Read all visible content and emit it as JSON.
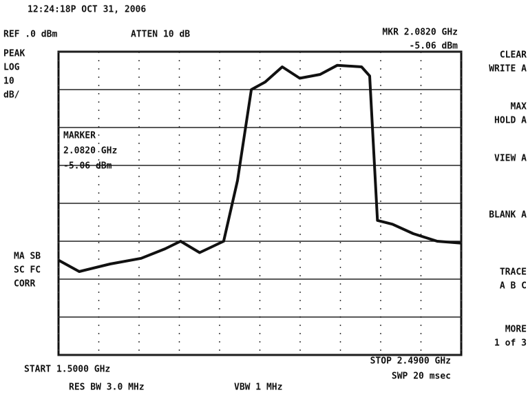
{
  "header": {
    "timestamp": "12:24:18P OCT 31, 2006",
    "ref": "REF .0 dBm",
    "atten": "ATTEN 10 dB",
    "marker_freq": "MKR 2.0820 GHz",
    "marker_level": "-5.06 dBm"
  },
  "scale": {
    "mode": "PEAK",
    "type": "LOG",
    "per_div": "10",
    "unit": "dB/"
  },
  "status": [
    "MA SB",
    "SC FC",
    "CORR"
  ],
  "marker_box": [
    "MARKER",
    "2.0820 GHz",
    "-5.06 dBm"
  ],
  "softkeys": [
    [
      "CLEAR",
      "WRITE A"
    ],
    [
      "MAX",
      "HOLD A"
    ],
    [
      "VIEW A"
    ],
    [
      "BLANK A"
    ],
    [
      "TRACE",
      "A B C"
    ],
    [
      "MORE",
      "1 of 3"
    ]
  ],
  "footer": {
    "start": "START 1.5000 GHz",
    "res_bw": "RES BW 3.0 MHz",
    "vbw": "VBW 1 MHz",
    "stop": "STOP 2.4900 GHz",
    "sweep": "SWP 20 msec"
  },
  "trace": {
    "xlim": [
      1.5,
      2.49
    ],
    "ylim": [
      -80,
      0
    ],
    "xticks": [
      1.5,
      1.599,
      1.698,
      1.797,
      1.896,
      1.995,
      2.094,
      2.193,
      2.292,
      2.391,
      2.49
    ],
    "yticks": [
      0,
      -10,
      -20,
      -30,
      -40,
      -50,
      -60,
      -70,
      -80
    ],
    "x": [
      1.5,
      1.551,
      1.627,
      1.703,
      1.762,
      1.8,
      1.847,
      1.906,
      1.94,
      1.974,
      2.008,
      2.05,
      2.093,
      2.143,
      2.185,
      2.245,
      2.265,
      2.284,
      2.321,
      2.372,
      2.431,
      2.49
    ],
    "values": [
      -55,
      -58,
      -56,
      -54.5,
      -52,
      -50,
      -53,
      -50,
      -34,
      -10,
      -8,
      -4,
      -7,
      -6,
      -3.6,
      -4,
      -6.4,
      -44.5,
      -45.5,
      -48,
      -50,
      -50.5
    ]
  }
}
